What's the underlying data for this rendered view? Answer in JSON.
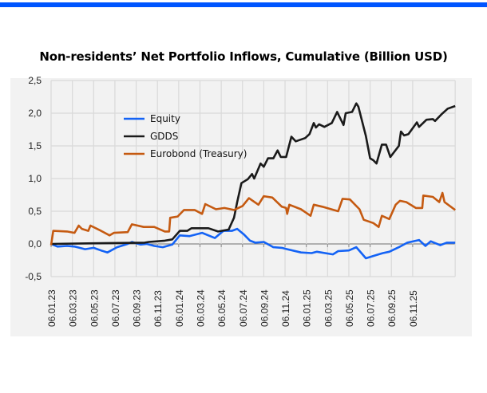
{
  "chart_data": {
    "type": "line",
    "title": "Non-residents’ Net Portfolio Inflows, Cumulative (Billion USD)",
    "xlabel": "",
    "ylabel": "",
    "ylim": [
      -0.5,
      2.5
    ],
    "xlim": [
      "2023-01-06",
      "2026-03-06"
    ],
    "y_ticks": [
      "2,5",
      "2,0",
      "1,5",
      "1,0",
      "0,5",
      "0,0",
      "-0,5"
    ],
    "y_tick_values": [
      2.5,
      2.0,
      1.5,
      1.0,
      0.5,
      0.0,
      -0.5
    ],
    "x_ticks": [
      "06.01.23",
      "06.03.23",
      "06.05.23",
      "06.07.23",
      "06.09.23",
      "06.11.23",
      "06.01.24",
      "06.03.24",
      "06.05.24",
      "06.07.24",
      "06.09.24",
      "06.11.24",
      "06.01.25",
      "06.03.25",
      "06.05.25",
      "06.07.25",
      "06.09.25",
      "06.11.25"
    ],
    "grid": true,
    "legend_position": "top-left",
    "series": [
      {
        "name": "Equity",
        "color": "#1463f5",
        "points": [
          [
            "2023-01-06",
            0
          ],
          [
            "2023-01-24",
            -0.04
          ],
          [
            "2023-02-21",
            -0.03
          ],
          [
            "2023-03-12",
            -0.04
          ],
          [
            "2023-04-12",
            -0.08
          ],
          [
            "2023-05-06",
            -0.06
          ],
          [
            "2023-05-27",
            -0.1
          ],
          [
            "2023-06-15",
            -0.13
          ],
          [
            "2023-07-12",
            -0.05
          ],
          [
            "2023-08-12",
            0
          ],
          [
            "2023-08-24",
            0.03
          ],
          [
            "2023-09-18",
            -0.01
          ],
          [
            "2023-10-06",
            0
          ],
          [
            "2023-10-27",
            -0.03
          ],
          [
            "2023-11-21",
            -0.05
          ],
          [
            "2023-12-18",
            -0.01
          ],
          [
            "2024-01-09",
            0.13
          ],
          [
            "2024-02-06",
            0.12
          ],
          [
            "2024-03-12",
            0.17
          ],
          [
            "2024-04-18",
            0.09
          ],
          [
            "2024-05-12",
            0.2
          ],
          [
            "2024-06-06",
            0.2
          ],
          [
            "2024-06-21",
            0.23
          ],
          [
            "2024-07-09",
            0.15
          ],
          [
            "2024-07-27",
            0.05
          ],
          [
            "2024-08-12",
            0.02
          ],
          [
            "2024-09-06",
            0.03
          ],
          [
            "2024-10-03",
            -0.05
          ],
          [
            "2024-10-27",
            -0.06
          ],
          [
            "2024-11-12",
            -0.08
          ],
          [
            "2024-12-21",
            -0.13
          ],
          [
            "2025-01-21",
            -0.14
          ],
          [
            "2025-02-06",
            -0.12
          ],
          [
            "2025-03-21",
            -0.16
          ],
          [
            "2025-04-06",
            -0.11
          ],
          [
            "2025-05-06",
            -0.1
          ],
          [
            "2025-05-27",
            -0.05
          ],
          [
            "2025-06-24",
            -0.22
          ],
          [
            "2025-07-24",
            -0.17
          ],
          [
            "2025-08-12",
            -0.14
          ],
          [
            "2025-08-30",
            -0.12
          ],
          [
            "2025-09-27",
            -0.05
          ],
          [
            "2025-10-21",
            0.02
          ],
          [
            "2025-11-24",
            0.06
          ],
          [
            "2025-12-12",
            -0.03
          ],
          [
            "2025-12-27",
            0.04
          ],
          [
            "2026-01-24",
            -0.02
          ],
          [
            "2026-02-12",
            0.02
          ],
          [
            "2026-03-06",
            0.02
          ]
        ]
      },
      {
        "name": "GDDS",
        "color": "#1a1a1a",
        "points": [
          [
            "2023-01-06",
            0
          ],
          [
            "2023-05-06",
            0.01
          ],
          [
            "2023-09-30",
            0.02
          ],
          [
            "2023-10-12",
            0.03
          ],
          [
            "2023-11-27",
            0.05
          ],
          [
            "2023-12-18",
            0.07
          ],
          [
            "2024-01-09",
            0.2
          ],
          [
            "2024-01-30",
            0.2
          ],
          [
            "2024-02-12",
            0.24
          ],
          [
            "2024-03-30",
            0.24
          ],
          [
            "2024-04-27",
            0.19
          ],
          [
            "2024-05-27",
            0.22
          ],
          [
            "2024-06-12",
            0.4
          ],
          [
            "2024-06-21",
            0.64
          ],
          [
            "2024-07-03",
            0.93
          ],
          [
            "2024-07-21",
            0.99
          ],
          [
            "2024-08-03",
            1.07
          ],
          [
            "2024-08-09",
            1.0
          ],
          [
            "2024-08-27",
            1.23
          ],
          [
            "2024-09-06",
            1.18
          ],
          [
            "2024-09-18",
            1.31
          ],
          [
            "2024-10-03",
            1.31
          ],
          [
            "2024-10-15",
            1.43
          ],
          [
            "2024-10-24",
            1.33
          ],
          [
            "2024-11-09",
            1.33
          ],
          [
            "2024-11-24",
            1.64
          ],
          [
            "2024-12-06",
            1.57
          ],
          [
            "2025-01-03",
            1.62
          ],
          [
            "2025-01-15",
            1.68
          ],
          [
            "2025-01-27",
            1.85
          ],
          [
            "2025-02-03",
            1.78
          ],
          [
            "2025-02-12",
            1.83
          ],
          [
            "2025-02-27",
            1.79
          ],
          [
            "2025-03-18",
            1.85
          ],
          [
            "2025-04-03",
            2.02
          ],
          [
            "2025-04-21",
            1.82
          ],
          [
            "2025-04-27",
            2.0
          ],
          [
            "2025-05-15",
            2.02
          ],
          [
            "2025-05-27",
            2.15
          ],
          [
            "2025-06-03",
            2.1
          ],
          [
            "2025-06-24",
            1.65
          ],
          [
            "2025-07-06",
            1.31
          ],
          [
            "2025-07-15",
            1.28
          ],
          [
            "2025-07-24",
            1.23
          ],
          [
            "2025-08-09",
            1.52
          ],
          [
            "2025-08-21",
            1.52
          ],
          [
            "2025-09-03",
            1.33
          ],
          [
            "2025-09-27",
            1.5
          ],
          [
            "2025-10-03",
            1.72
          ],
          [
            "2025-10-12",
            1.66
          ],
          [
            "2025-10-24",
            1.68
          ],
          [
            "2025-11-06",
            1.77
          ],
          [
            "2025-11-18",
            1.86
          ],
          [
            "2025-11-24",
            1.79
          ],
          [
            "2025-12-15",
            1.9
          ],
          [
            "2026-01-03",
            1.91
          ],
          [
            "2026-01-09",
            1.88
          ],
          [
            "2026-01-27",
            1.98
          ],
          [
            "2026-02-15",
            2.07
          ],
          [
            "2026-03-06",
            2.11
          ]
        ]
      },
      {
        "name": "Eurobond (Treasury)",
        "color": "#c55a11",
        "points": [
          [
            "2023-01-06",
            -0.02
          ],
          [
            "2023-01-12",
            0.2
          ],
          [
            "2023-02-21",
            0.19
          ],
          [
            "2023-03-12",
            0.17
          ],
          [
            "2023-03-24",
            0.28
          ],
          [
            "2023-04-03",
            0.23
          ],
          [
            "2023-04-21",
            0.2
          ],
          [
            "2023-04-27",
            0.28
          ],
          [
            "2023-05-27",
            0.2
          ],
          [
            "2023-06-21",
            0.13
          ],
          [
            "2023-07-03",
            0.17
          ],
          [
            "2023-08-12",
            0.18
          ],
          [
            "2023-08-24",
            0.3
          ],
          [
            "2023-09-27",
            0.26
          ],
          [
            "2023-10-27",
            0.26
          ],
          [
            "2023-11-27",
            0.19
          ],
          [
            "2023-12-09",
            0.19
          ],
          [
            "2023-12-12",
            0.4
          ],
          [
            "2024-01-03",
            0.42
          ],
          [
            "2024-01-21",
            0.52
          ],
          [
            "2024-02-21",
            0.52
          ],
          [
            "2024-03-12",
            0.46
          ],
          [
            "2024-03-21",
            0.61
          ],
          [
            "2024-04-21",
            0.53
          ],
          [
            "2024-05-15",
            0.55
          ],
          [
            "2024-06-12",
            0.52
          ],
          [
            "2024-07-06",
            0.58
          ],
          [
            "2024-07-24",
            0.7
          ],
          [
            "2024-08-21",
            0.6
          ],
          [
            "2024-09-06",
            0.73
          ],
          [
            "2024-09-30",
            0.71
          ],
          [
            "2024-10-27",
            0.57
          ],
          [
            "2024-11-09",
            0.55
          ],
          [
            "2024-11-12",
            0.46
          ],
          [
            "2024-11-18",
            0.6
          ],
          [
            "2024-12-21",
            0.53
          ],
          [
            "2025-01-18",
            0.43
          ],
          [
            "2025-01-27",
            0.6
          ],
          [
            "2025-02-21",
            0.57
          ],
          [
            "2025-04-06",
            0.5
          ],
          [
            "2025-04-18",
            0.69
          ],
          [
            "2025-05-09",
            0.68
          ],
          [
            "2025-06-06",
            0.53
          ],
          [
            "2025-06-18",
            0.37
          ],
          [
            "2025-07-15",
            0.32
          ],
          [
            "2025-07-30",
            0.26
          ],
          [
            "2025-08-09",
            0.43
          ],
          [
            "2025-08-30",
            0.38
          ],
          [
            "2025-09-18",
            0.6
          ],
          [
            "2025-09-30",
            0.66
          ],
          [
            "2025-10-18",
            0.64
          ],
          [
            "2025-11-15",
            0.55
          ],
          [
            "2025-12-03",
            0.55
          ],
          [
            "2025-12-06",
            0.74
          ],
          [
            "2026-01-03",
            0.72
          ],
          [
            "2026-01-21",
            0.64
          ],
          [
            "2026-01-30",
            0.78
          ],
          [
            "2026-02-06",
            0.64
          ],
          [
            "2026-03-06",
            0.52
          ]
        ]
      }
    ]
  }
}
